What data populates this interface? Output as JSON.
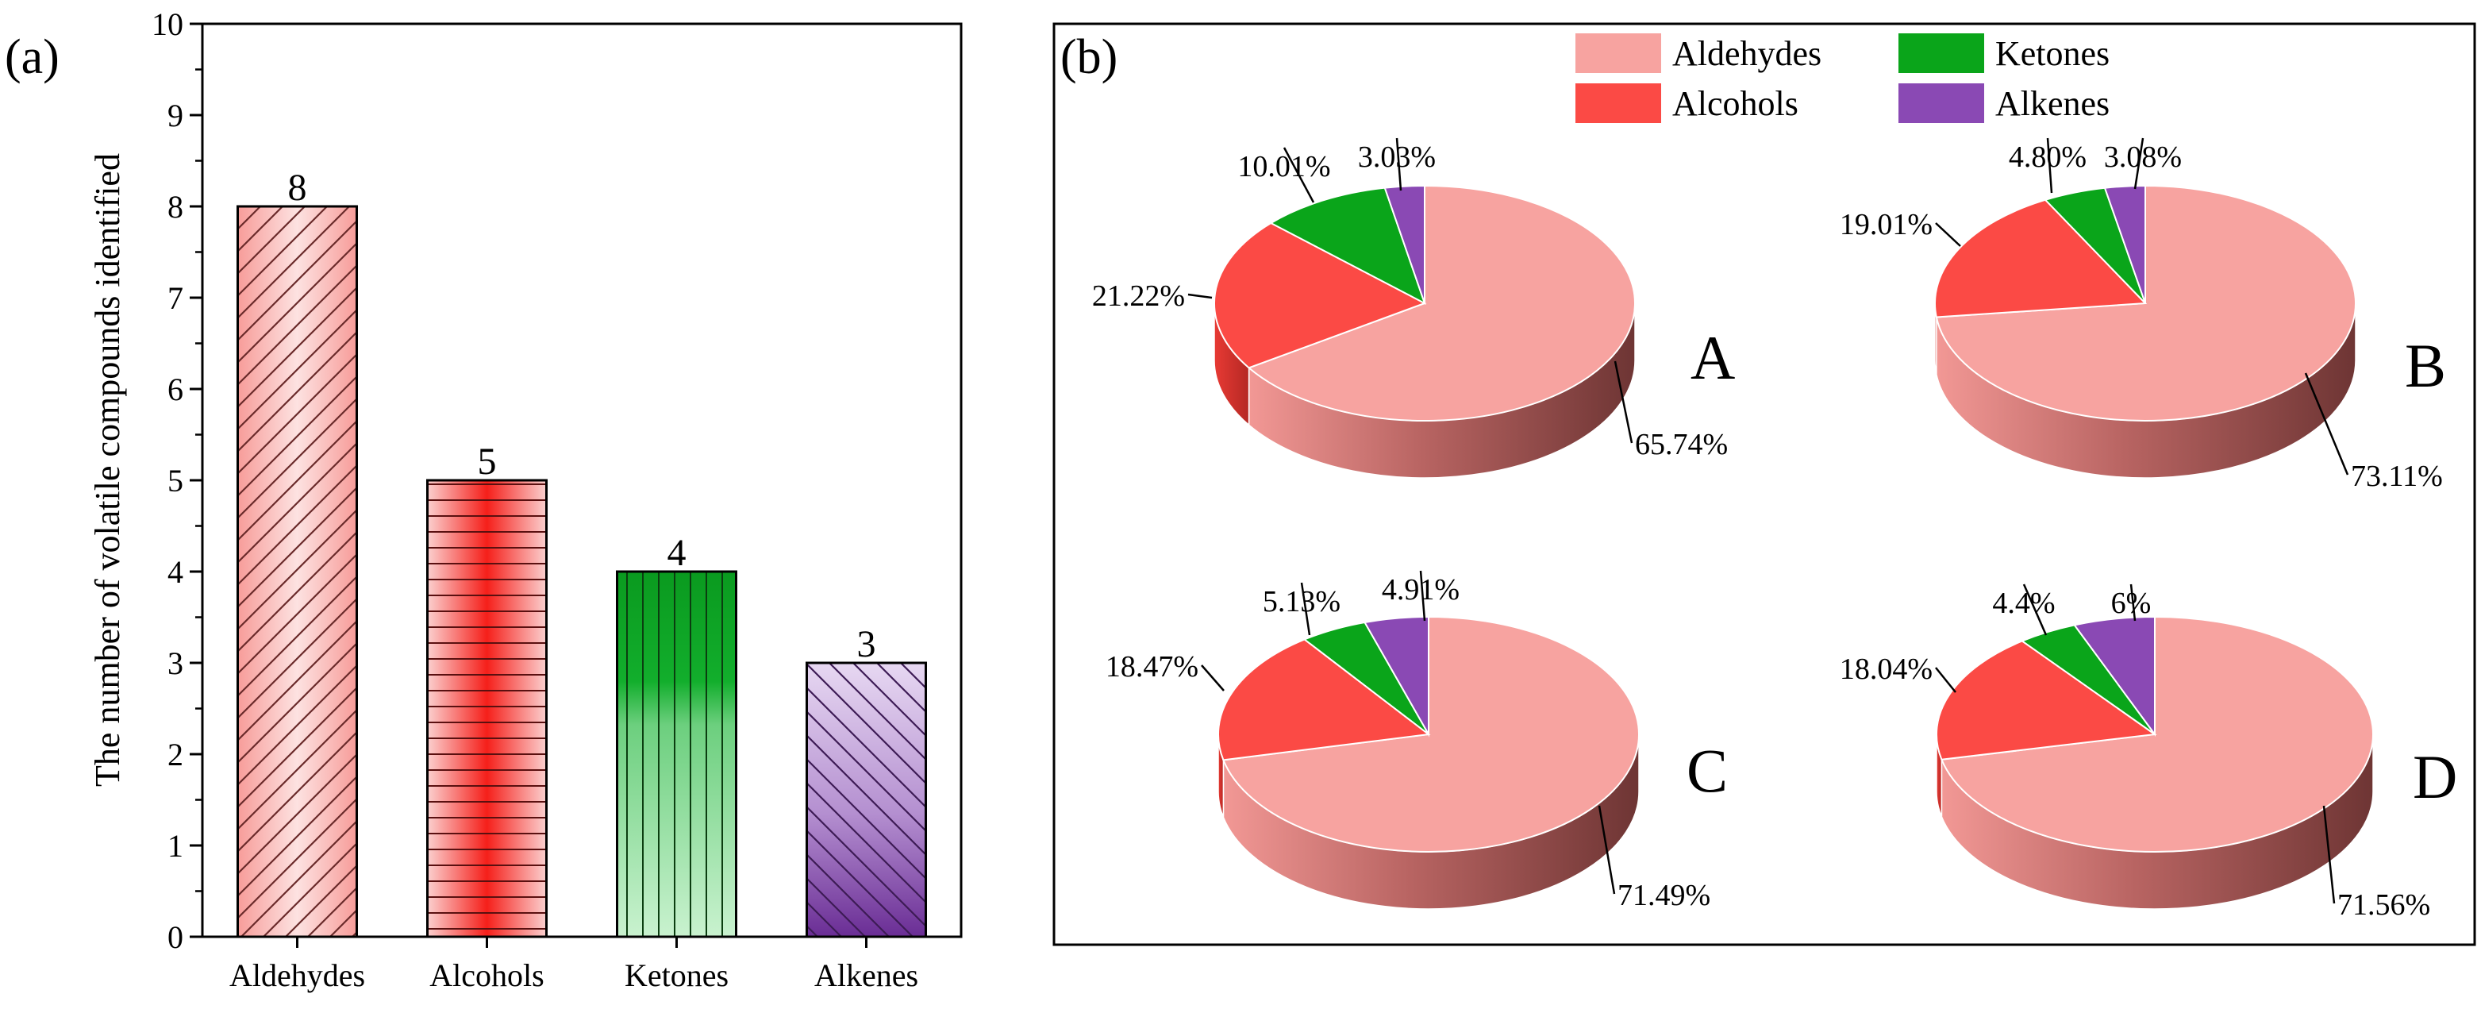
{
  "colors": {
    "aldehydes": "#f7a3a0",
    "alcohols": "#fb4a45",
    "ketones": "#0aa51a",
    "alkenes": "#8a49b4",
    "axis": "#000000"
  },
  "panel_a": {
    "label": "(a)"
  },
  "panel_b": {
    "label": "(b)",
    "legend": [
      "Aldehydes",
      "Alcohols",
      "Ketones",
      "Alkenes"
    ]
  },
  "chart_data": [
    {
      "type": "bar",
      "title": "",
      "xlabel": "",
      "ylabel": "The number of volatile compounds identified",
      "categories": [
        "Aldehydes",
        "Alcohols",
        "Ketones",
        "Alkenes"
      ],
      "values": [
        8,
        5,
        4,
        3
      ],
      "data_labels": [
        "8",
        "5",
        "4",
        "3"
      ],
      "ylim": [
        0,
        10
      ],
      "yticks": [
        "0",
        "1",
        "2",
        "3",
        "4",
        "5",
        "6",
        "7",
        "8",
        "9",
        "10"
      ]
    },
    {
      "type": "pie",
      "name": "A",
      "categories": [
        "Aldehydes",
        "Alcohols",
        "Ketones",
        "Alkenes"
      ],
      "values": [
        65.74,
        21.22,
        10.01,
        3.03
      ],
      "labels": [
        "65.74%",
        "21.22%",
        "10.01%",
        "3.03%"
      ]
    },
    {
      "type": "pie",
      "name": "B",
      "categories": [
        "Aldehydes",
        "Alcohols",
        "Ketones",
        "Alkenes"
      ],
      "values": [
        73.11,
        19.01,
        4.8,
        3.08
      ],
      "labels": [
        "73.11%",
        "19.01%",
        "4.80%",
        "3.08%"
      ]
    },
    {
      "type": "pie",
      "name": "C",
      "categories": [
        "Aldehydes",
        "Alcohols",
        "Ketones",
        "Alkenes"
      ],
      "values": [
        71.49,
        18.47,
        5.13,
        4.91
      ],
      "labels": [
        "71.49%",
        "18.47%",
        "5.13%",
        "4.91%"
      ]
    },
    {
      "type": "pie",
      "name": "D",
      "categories": [
        "Aldehydes",
        "Alcohols",
        "Ketones",
        "Alkenes"
      ],
      "values": [
        71.56,
        18.04,
        4.4,
        6
      ],
      "labels": [
        "71.56%",
        "18.04%",
        "4.4%",
        "6%"
      ]
    }
  ]
}
